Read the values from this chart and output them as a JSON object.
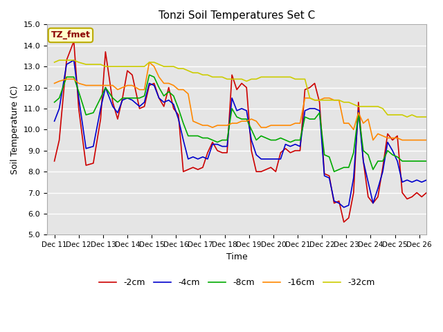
{
  "title": "Tonzi Soil Temperatures Set C",
  "xlabel": "Time",
  "ylabel": "Soil Temperature (C)",
  "ylim": [
    5.0,
    15.0
  ],
  "yticks": [
    5.0,
    6.0,
    7.0,
    8.0,
    9.0,
    10.0,
    11.0,
    12.0,
    13.0,
    14.0,
    15.0
  ],
  "legend_label": "TZ_fmet",
  "xtick_labels": [
    "Dec 11",
    "Dec 12",
    "Dec 13",
    "Dec 14",
    "Dec 15",
    "Dec 16",
    "Dec 17",
    "Dec 18",
    "Dec 19",
    "Dec 20",
    "Dec 21",
    "Dec 22",
    "Dec 23",
    "Dec 24",
    "Dec 25",
    "Dec 26"
  ],
  "colors": {
    "-2cm": "#cc0000",
    "-4cm": "#0000cc",
    "-8cm": "#00aa00",
    "-16cm": "#ff8800",
    "-32cm": "#cccc00"
  },
  "background_color": "#e5e5e5",
  "series_x": [
    0,
    0.2,
    0.5,
    0.8,
    1.0,
    1.3,
    1.6,
    1.9,
    2.1,
    2.4,
    2.6,
    2.8,
    3.0,
    3.2,
    3.5,
    3.7,
    3.9,
    4.1,
    4.3,
    4.5,
    4.7,
    4.9,
    5.1,
    5.3,
    5.5,
    5.7,
    5.9,
    6.1,
    6.3,
    6.5,
    6.7,
    6.9,
    7.1,
    7.3,
    7.5,
    7.7,
    7.9,
    8.1,
    8.3,
    8.5,
    8.7,
    8.9,
    9.1,
    9.3,
    9.5,
    9.7,
    9.9,
    10.1,
    10.3,
    10.5,
    10.7,
    10.9,
    11.1,
    11.3,
    11.5,
    11.7,
    11.9,
    12.1,
    12.3,
    12.5,
    12.7,
    12.9,
    13.1,
    13.3,
    13.5,
    13.7,
    13.9,
    14.1,
    14.3,
    14.5,
    14.7,
    14.9,
    15.1,
    15.3,
    15.5
  ],
  "series": {
    "-2cm": [
      8.5,
      9.5,
      13.3,
      14.2,
      11.0,
      8.3,
      8.4,
      10.5,
      13.7,
      11.3,
      10.5,
      11.5,
      12.8,
      12.6,
      11.0,
      11.1,
      12.1,
      12.2,
      11.5,
      11.1,
      12.0,
      11.0,
      10.7,
      8.0,
      8.1,
      8.2,
      8.1,
      8.2,
      8.9,
      9.4,
      9.0,
      8.9,
      8.9,
      12.6,
      11.9,
      12.2,
      12.0,
      9.0,
      8.0,
      8.0,
      8.1,
      8.2,
      8.0,
      8.9,
      9.1,
      8.9,
      9.0,
      9.0,
      11.9,
      12.0,
      12.2,
      11.3,
      7.9,
      7.8,
      6.5,
      6.6,
      5.6,
      5.8,
      7.0,
      11.3,
      8.5,
      6.8,
      6.5,
      6.8,
      8.2,
      9.8,
      9.5,
      9.7,
      7.0,
      6.7,
      6.8,
      7.0,
      6.8,
      7.0,
      6.7
    ],
    "-4cm": [
      10.4,
      11.0,
      13.1,
      13.3,
      11.5,
      9.1,
      9.2,
      11.0,
      12.0,
      11.1,
      10.8,
      11.4,
      11.5,
      11.4,
      11.1,
      11.3,
      12.2,
      12.1,
      11.5,
      11.3,
      11.4,
      11.2,
      10.5,
      9.5,
      8.6,
      8.7,
      8.6,
      8.7,
      8.6,
      9.3,
      9.3,
      9.2,
      9.2,
      11.5,
      10.9,
      11.0,
      10.9,
      9.5,
      8.8,
      8.6,
      8.6,
      8.6,
      8.6,
      8.6,
      9.3,
      9.2,
      9.3,
      9.2,
      10.9,
      11.0,
      11.0,
      10.9,
      7.8,
      7.7,
      6.6,
      6.5,
      6.3,
      6.4,
      7.7,
      10.9,
      8.5,
      7.5,
      6.5,
      7.2,
      8.0,
      9.4,
      9.0,
      8.5,
      7.5,
      7.6,
      7.5,
      7.6,
      7.5,
      7.6,
      7.6
    ],
    "-8cm": [
      11.3,
      11.5,
      12.5,
      12.5,
      11.8,
      10.7,
      10.8,
      11.5,
      12.0,
      11.5,
      11.3,
      11.5,
      11.5,
      11.5,
      11.5,
      11.6,
      12.6,
      12.5,
      12.0,
      11.6,
      11.8,
      11.6,
      11.0,
      10.3,
      9.7,
      9.7,
      9.7,
      9.6,
      9.6,
      9.5,
      9.4,
      9.5,
      9.5,
      11.0,
      10.6,
      10.5,
      10.5,
      10.0,
      9.5,
      9.7,
      9.6,
      9.5,
      9.5,
      9.6,
      9.5,
      9.4,
      9.5,
      9.5,
      10.6,
      10.5,
      10.5,
      10.8,
      8.8,
      8.7,
      8.0,
      8.1,
      8.2,
      8.2,
      8.9,
      10.8,
      9.0,
      8.8,
      8.1,
      8.5,
      8.5,
      9.0,
      8.8,
      8.7,
      8.5,
      8.5,
      8.5,
      8.5,
      8.5,
      8.5,
      8.5
    ],
    "-16cm": [
      12.2,
      12.3,
      12.4,
      12.4,
      12.2,
      12.1,
      12.1,
      12.1,
      12.1,
      12.1,
      11.9,
      12.0,
      12.1,
      12.1,
      11.9,
      11.9,
      13.2,
      13.0,
      12.5,
      12.2,
      12.2,
      12.1,
      11.9,
      11.9,
      11.7,
      10.4,
      10.3,
      10.2,
      10.2,
      10.1,
      10.2,
      10.2,
      10.2,
      10.3,
      10.3,
      10.4,
      10.4,
      10.5,
      10.4,
      10.1,
      10.1,
      10.2,
      10.2,
      10.2,
      10.2,
      10.2,
      10.3,
      10.3,
      11.5,
      11.5,
      11.4,
      11.4,
      11.5,
      11.5,
      11.4,
      11.4,
      10.3,
      10.3,
      10.0,
      10.8,
      10.3,
      10.5,
      9.5,
      9.8,
      9.7,
      9.6,
      9.6,
      9.6,
      9.5,
      9.5,
      9.5,
      9.5,
      9.5,
      9.5,
      9.5
    ],
    "-32cm": [
      13.2,
      13.3,
      13.3,
      13.3,
      13.2,
      13.1,
      13.1,
      13.1,
      13.0,
      13.0,
      13.0,
      13.0,
      13.0,
      13.0,
      13.0,
      13.0,
      13.2,
      13.2,
      13.1,
      13.0,
      13.0,
      13.0,
      12.9,
      12.9,
      12.8,
      12.7,
      12.7,
      12.6,
      12.6,
      12.5,
      12.5,
      12.5,
      12.4,
      12.4,
      12.4,
      12.4,
      12.3,
      12.4,
      12.4,
      12.5,
      12.5,
      12.5,
      12.5,
      12.5,
      12.5,
      12.5,
      12.4,
      12.4,
      12.4,
      11.5,
      11.4,
      11.4,
      11.4,
      11.4,
      11.4,
      11.4,
      11.3,
      11.3,
      11.2,
      11.1,
      11.1,
      11.1,
      11.1,
      11.1,
      11.0,
      10.7,
      10.7,
      10.7,
      10.7,
      10.6,
      10.7,
      10.6,
      10.6,
      10.6,
      10.6
    ]
  }
}
